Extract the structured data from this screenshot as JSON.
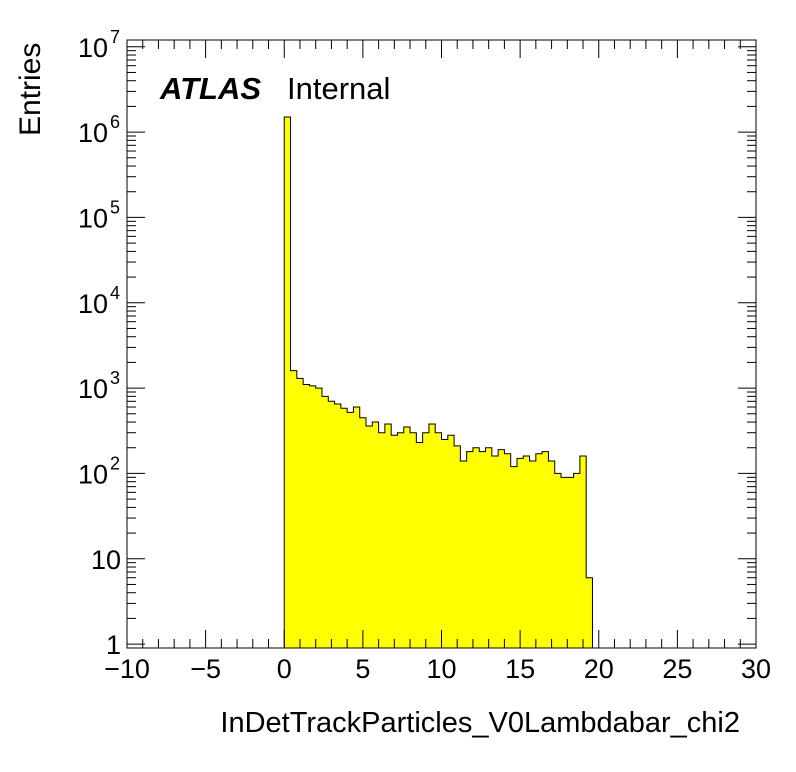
{
  "chart_data": {
    "type": "bar",
    "style": "histogram",
    "xlabel": "InDetTrackParticles_V0Lambdabar_chi2",
    "ylabel": "Entries",
    "xlim": [
      -10,
      30
    ],
    "ylim": [
      0.9,
      12000000
    ],
    "yscale": "log",
    "grid": false,
    "fill_color": "#ffff00",
    "line_color": "#000000",
    "bin_width": 0.4,
    "x_start": 0,
    "x_ticks": [
      -10,
      -5,
      0,
      5,
      10,
      15,
      20,
      25,
      30
    ],
    "x_tick_labels": [
      "−10",
      "−5",
      "0",
      "5",
      "10",
      "15",
      "20",
      "25",
      "30"
    ],
    "y_ticks": [
      1,
      10,
      100,
      1000,
      10000,
      100000,
      1000000,
      10000000
    ],
    "y_tick_labels": [
      {
        "base": "1",
        "exp": ""
      },
      {
        "base": "10",
        "exp": ""
      },
      {
        "base": "10",
        "exp": "2"
      },
      {
        "base": "10",
        "exp": "3"
      },
      {
        "base": "10",
        "exp": "4"
      },
      {
        "base": "10",
        "exp": "5"
      },
      {
        "base": "10",
        "exp": "6"
      },
      {
        "base": "10",
        "exp": "7"
      }
    ],
    "values": [
      1500000,
      1600,
      1300,
      1100,
      1060,
      1000,
      800,
      700,
      650,
      580,
      520,
      600,
      450,
      360,
      400,
      300,
      380,
      280,
      300,
      350,
      300,
      230,
      300,
      380,
      300,
      250,
      280,
      210,
      140,
      180,
      200,
      180,
      200,
      160,
      190,
      170,
      120,
      150,
      160,
      140,
      170,
      180,
      140,
      100,
      90,
      90,
      100,
      160,
      6
    ]
  },
  "annotation": {
    "experiment": "ATLAS",
    "status": "Internal"
  }
}
